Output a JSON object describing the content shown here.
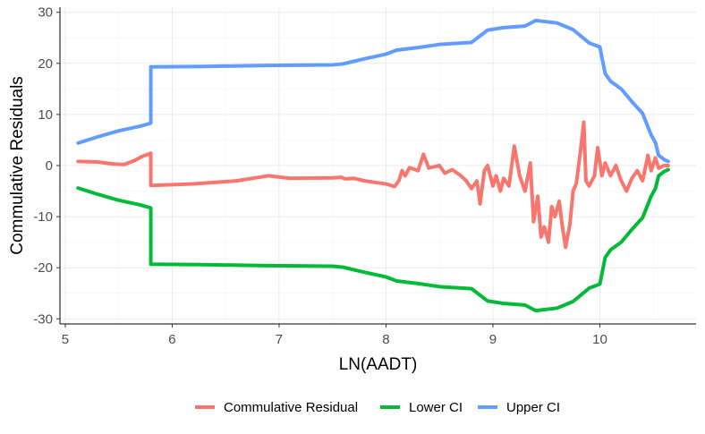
{
  "chart_data": {
    "type": "line",
    "title": "",
    "xlabel": "LN(AADT)",
    "ylabel": "Commulative Residuals",
    "xlim": [
      4.95,
      10.9
    ],
    "ylim": [
      -31,
      31
    ],
    "x_ticks": [
      5,
      6,
      7,
      8,
      9,
      10
    ],
    "y_ticks": [
      -30,
      -20,
      -10,
      0,
      10,
      20,
      30
    ],
    "grid": true,
    "legend_position": "bottom",
    "series": [
      {
        "name": "Commulative Residual",
        "color": "#F8766D",
        "points": [
          [
            5.12,
            0.8
          ],
          [
            5.3,
            0.7
          ],
          [
            5.45,
            0.3
          ],
          [
            5.55,
            0.2
          ],
          [
            5.65,
            1.0
          ],
          [
            5.72,
            1.8
          ],
          [
            5.8,
            2.4
          ],
          [
            5.8,
            -3.9
          ],
          [
            6.2,
            -3.6
          ],
          [
            6.6,
            -3.0
          ],
          [
            6.9,
            -2.0
          ],
          [
            7.1,
            -2.5
          ],
          [
            7.5,
            -2.4
          ],
          [
            7.58,
            -2.3
          ],
          [
            7.62,
            -2.6
          ],
          [
            7.7,
            -2.5
          ],
          [
            7.8,
            -3.0
          ],
          [
            8.0,
            -3.6
          ],
          [
            8.08,
            -4.1
          ],
          [
            8.12,
            -3.0
          ],
          [
            8.15,
            -1.0
          ],
          [
            8.18,
            -2.0
          ],
          [
            8.22,
            -0.4
          ],
          [
            8.3,
            -1.0
          ],
          [
            8.35,
            2.2
          ],
          [
            8.4,
            -0.5
          ],
          [
            8.5,
            0.0
          ],
          [
            8.55,
            -1.5
          ],
          [
            8.62,
            -0.8
          ],
          [
            8.7,
            -2.0
          ],
          [
            8.75,
            -3.0
          ],
          [
            8.8,
            -4.5
          ],
          [
            8.85,
            -3.0
          ],
          [
            8.88,
            -7.5
          ],
          [
            8.92,
            -1.0
          ],
          [
            8.95,
            0.0
          ],
          [
            9.0,
            -4.0
          ],
          [
            9.03,
            -2.0
          ],
          [
            9.07,
            -5.0
          ],
          [
            9.1,
            -2.5
          ],
          [
            9.15,
            -4.0
          ],
          [
            9.2,
            3.8
          ],
          [
            9.25,
            -2.0
          ],
          [
            9.3,
            -5.0
          ],
          [
            9.35,
            0.5
          ],
          [
            9.38,
            -11.0
          ],
          [
            9.42,
            -6.0
          ],
          [
            9.45,
            -14.0
          ],
          [
            9.48,
            -12.0
          ],
          [
            9.52,
            -15.0
          ],
          [
            9.55,
            -8.0
          ],
          [
            9.58,
            -10.0
          ],
          [
            9.62,
            -7.0
          ],
          [
            9.65,
            -12.0
          ],
          [
            9.68,
            -16.0
          ],
          [
            9.72,
            -11.5
          ],
          [
            9.75,
            -5.0
          ],
          [
            9.78,
            -3.5
          ],
          [
            9.82,
            3.0
          ],
          [
            9.85,
            8.5
          ],
          [
            9.87,
            -3.0
          ],
          [
            9.9,
            -4.0
          ],
          [
            9.95,
            -2.0
          ],
          [
            9.98,
            3.5
          ],
          [
            10.02,
            -2.0
          ],
          [
            10.05,
            0.5
          ],
          [
            10.1,
            -2.0
          ],
          [
            10.15,
            0.0
          ],
          [
            10.2,
            -3.0
          ],
          [
            10.25,
            -5.0
          ],
          [
            10.3,
            -2.5
          ],
          [
            10.35,
            -1.0
          ],
          [
            10.4,
            -3.0
          ],
          [
            10.45,
            2.0
          ],
          [
            10.48,
            -1.0
          ],
          [
            10.52,
            1.5
          ],
          [
            10.55,
            -0.5
          ],
          [
            10.6,
            0.0
          ],
          [
            10.64,
            0.0
          ]
        ]
      },
      {
        "name": "Lower CI",
        "color": "#00BA38",
        "points": [
          [
            5.12,
            -4.4
          ],
          [
            5.3,
            -5.6
          ],
          [
            5.5,
            -6.8
          ],
          [
            5.7,
            -7.7
          ],
          [
            5.8,
            -8.3
          ],
          [
            5.8,
            -19.3
          ],
          [
            6.3,
            -19.4
          ],
          [
            6.9,
            -19.6
          ],
          [
            7.5,
            -19.7
          ],
          [
            7.6,
            -19.9
          ],
          [
            7.8,
            -20.9
          ],
          [
            8.0,
            -21.8
          ],
          [
            8.1,
            -22.6
          ],
          [
            8.3,
            -23.1
          ],
          [
            8.5,
            -23.7
          ],
          [
            8.8,
            -24.1
          ],
          [
            8.95,
            -26.5
          ],
          [
            9.1,
            -27.0
          ],
          [
            9.3,
            -27.3
          ],
          [
            9.4,
            -28.4
          ],
          [
            9.6,
            -27.9
          ],
          [
            9.75,
            -26.6
          ],
          [
            9.9,
            -24.0
          ],
          [
            10.0,
            -23.2
          ],
          [
            10.05,
            -18.0
          ],
          [
            10.1,
            -16.5
          ],
          [
            10.2,
            -15.0
          ],
          [
            10.3,
            -12.5
          ],
          [
            10.4,
            -10.2
          ],
          [
            10.48,
            -6.0
          ],
          [
            10.52,
            -4.5
          ],
          [
            10.55,
            -2.0
          ],
          [
            10.6,
            -1.2
          ],
          [
            10.64,
            -0.8
          ]
        ]
      },
      {
        "name": "Upper CI",
        "color": "#619CFF",
        "points": [
          [
            5.12,
            4.4
          ],
          [
            5.3,
            5.6
          ],
          [
            5.5,
            6.8
          ],
          [
            5.7,
            7.7
          ],
          [
            5.8,
            8.3
          ],
          [
            5.8,
            19.3
          ],
          [
            6.3,
            19.4
          ],
          [
            6.9,
            19.6
          ],
          [
            7.5,
            19.7
          ],
          [
            7.6,
            19.9
          ],
          [
            7.8,
            20.9
          ],
          [
            8.0,
            21.8
          ],
          [
            8.1,
            22.6
          ],
          [
            8.3,
            23.1
          ],
          [
            8.5,
            23.7
          ],
          [
            8.8,
            24.1
          ],
          [
            8.95,
            26.5
          ],
          [
            9.1,
            27.0
          ],
          [
            9.3,
            27.3
          ],
          [
            9.4,
            28.4
          ],
          [
            9.6,
            27.9
          ],
          [
            9.75,
            26.6
          ],
          [
            9.9,
            24.0
          ],
          [
            10.0,
            23.2
          ],
          [
            10.05,
            18.0
          ],
          [
            10.1,
            16.5
          ],
          [
            10.2,
            15.0
          ],
          [
            10.3,
            12.5
          ],
          [
            10.4,
            10.2
          ],
          [
            10.48,
            6.0
          ],
          [
            10.52,
            4.5
          ],
          [
            10.55,
            2.0
          ],
          [
            10.6,
            1.2
          ],
          [
            10.64,
            0.8
          ]
        ]
      }
    ]
  }
}
